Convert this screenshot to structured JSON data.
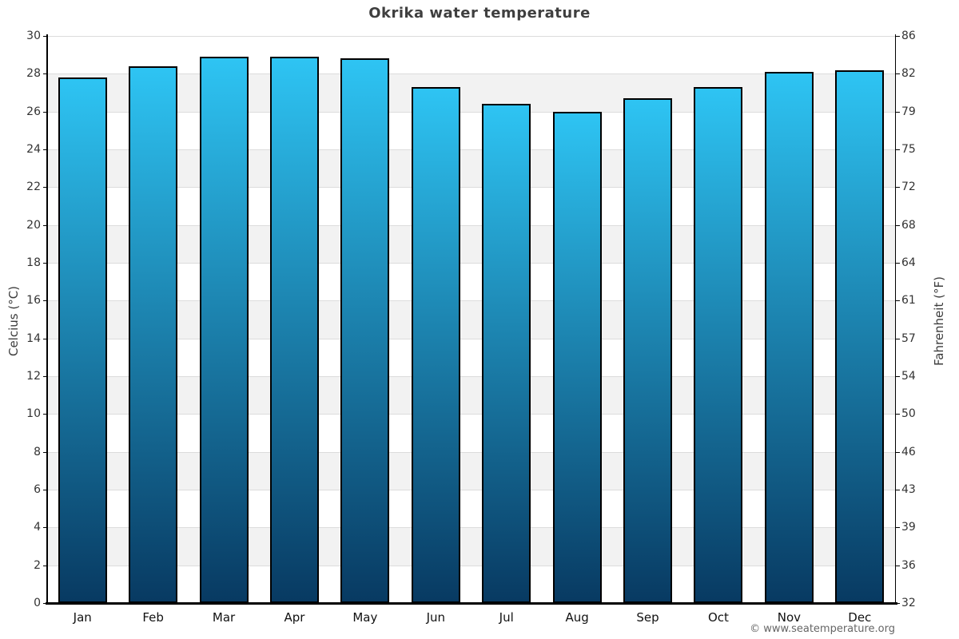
{
  "chart_data": {
    "type": "bar",
    "title": "Okrika water temperature",
    "ylabel_left": "Celcius (°C)",
    "ylabel_right": "Fahrenheit (°F)",
    "categories": [
      "Jan",
      "Feb",
      "Mar",
      "Apr",
      "May",
      "Jun",
      "Jul",
      "Aug",
      "Sep",
      "Oct",
      "Nov",
      "Dec"
    ],
    "series": [
      {
        "name": "Water temperature (°C)",
        "values": [
          27.8,
          28.4,
          28.9,
          28.9,
          28.8,
          27.3,
          26.4,
          26.0,
          26.7,
          27.3,
          28.1,
          28.2
        ]
      }
    ],
    "ylim_celsius": [
      0,
      30
    ],
    "celsius_ticks": [
      0,
      2,
      4,
      6,
      8,
      10,
      12,
      14,
      16,
      18,
      20,
      22,
      24,
      26,
      28,
      30
    ],
    "fahrenheit_ticks": [
      32,
      36,
      39,
      43,
      46,
      50,
      54,
      57,
      61,
      64,
      68,
      72,
      75,
      79,
      82,
      86
    ],
    "grid": "horizontal stripes every 2°C, alternating white/gray",
    "legend": "none",
    "copyright": "© www.seatemperature.org",
    "colors": {
      "bar_gradient_top": "#2ec4f3",
      "bar_gradient_bottom": "#083a62",
      "bar_border": "#000000",
      "stripe_gray": "#f2f2f2",
      "gridline": "#dcdcdc",
      "axis": "#000000",
      "title_text": "#3f3f3f",
      "tick_text": "#333333",
      "month_text": "#111111",
      "axis_label_text": "#3c3c3c",
      "copyright_text": "#666666"
    }
  }
}
